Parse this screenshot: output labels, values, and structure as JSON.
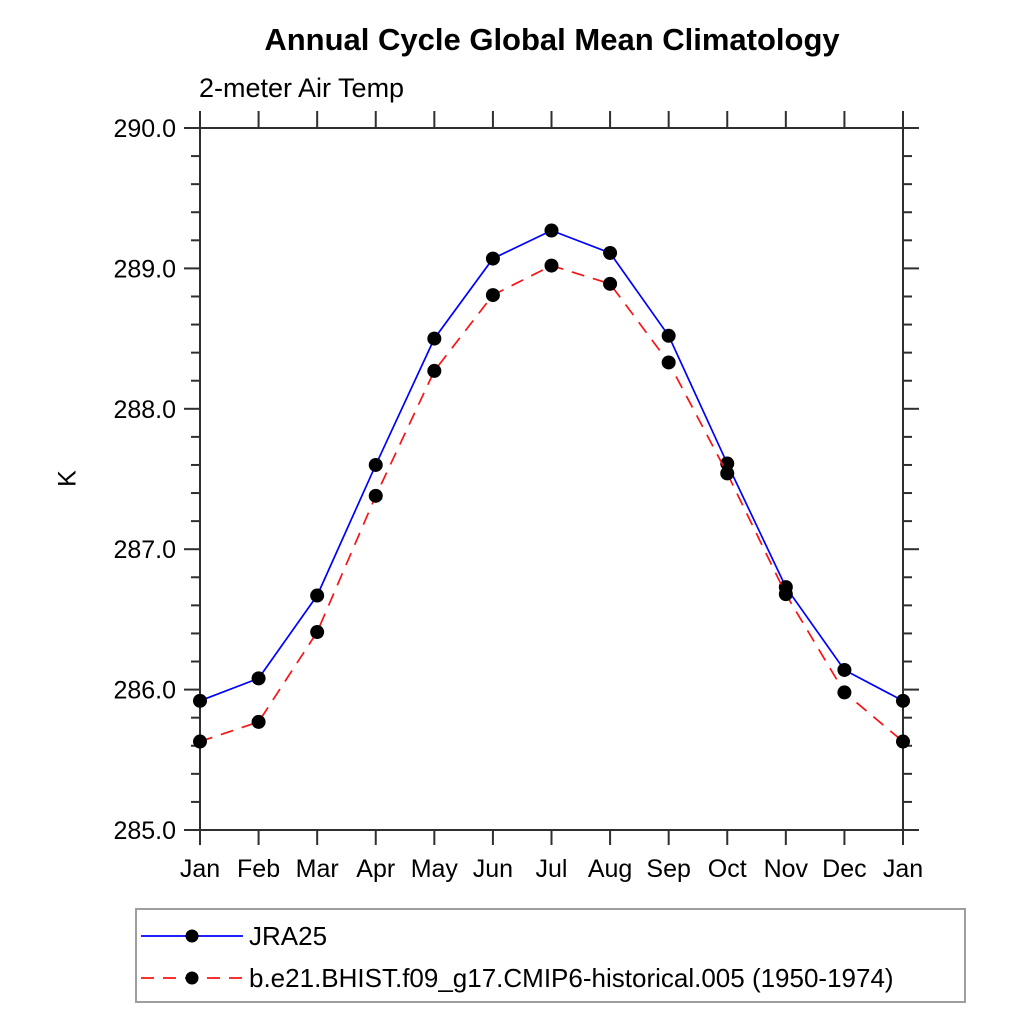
{
  "title": "Annual Cycle Global Mean Climatology",
  "subtitle": "2-meter Air Temp",
  "chart_data": {
    "type": "line",
    "title": "Annual Cycle Global Mean Climatology",
    "subtitle": "2-meter Air Temp",
    "ylabel": "K",
    "ylim": [
      285.0,
      290.0
    ],
    "y_major_step": 1.0,
    "y_minor_step": 0.2,
    "y_tick_labels": [
      "285.0",
      "286.0",
      "287.0",
      "288.0",
      "289.0",
      "290.0"
    ],
    "categories": [
      "Jan",
      "Feb",
      "Mar",
      "Apr",
      "May",
      "Jun",
      "Jul",
      "Aug",
      "Sep",
      "Oct",
      "Nov",
      "Dec",
      "Jan"
    ],
    "series": [
      {
        "name": "JRA25",
        "color": "#0000ff",
        "line_style": "solid",
        "marker": "circle",
        "marker_color": "#000000",
        "values": [
          285.92,
          286.08,
          286.67,
          287.6,
          288.5,
          289.07,
          289.27,
          289.11,
          288.52,
          287.61,
          286.73,
          286.14,
          285.92
        ]
      },
      {
        "name": "b.e21.BHIST.f09_g17.CMIP6-historical.005 (1950-1974)",
        "color": "#f81414",
        "line_style": "dashed",
        "marker": "circle",
        "marker_color": "#000000",
        "values": [
          285.63,
          285.77,
          286.41,
          287.38,
          288.27,
          288.81,
          289.02,
          288.89,
          288.33,
          287.54,
          286.68,
          285.98,
          285.63
        ]
      }
    ],
    "legend_position": "bottom-left",
    "grid": false
  },
  "colors": {
    "axis": "#2f2f2f",
    "text": "#000000",
    "legend_border": "#9e9e9e",
    "background": "#ffffff"
  }
}
